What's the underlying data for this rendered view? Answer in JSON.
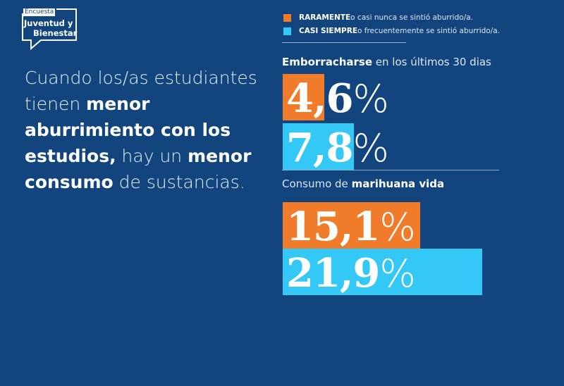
{
  "logo": {
    "tag": "Encuesta",
    "line1": "Juventud y",
    "line2": "Bienestar"
  },
  "lead": {
    "parts": [
      "Cuando los/as estudiantes tienen ",
      "menor aburrimiento con los estudios,",
      " hay un ",
      "menor consumo",
      " de sustancias."
    ]
  },
  "colors": {
    "background": "#12447e",
    "rarely": "#f07b2a",
    "almost_always": "#33c8f5"
  },
  "chart_data": {
    "type": "bar",
    "orientation": "horizontal",
    "legend": [
      {
        "bold": "RARAMENTE",
        "rest": " o casi nunca se sintió aburrido/a.",
        "color": "#f07b2a"
      },
      {
        "bold": "CASI SIEMPRE",
        "rest": " o frecuentemente se sintió aburrido/a.",
        "color": "#33c8f5"
      }
    ],
    "groups": [
      {
        "title_bold": "Emborracharse",
        "title_rest": " en los últimos 30 dias",
        "title_bold_first": true,
        "values": [
          4.6,
          7.8
        ],
        "labels": [
          "4,6",
          "7,8"
        ]
      },
      {
        "title_bold": "marihuana vida",
        "title_rest": "Consumo de ",
        "title_bold_first": false,
        "values": [
          15.1,
          21.9
        ],
        "labels": [
          "15,1",
          "21,9"
        ]
      }
    ],
    "unit": "%"
  }
}
